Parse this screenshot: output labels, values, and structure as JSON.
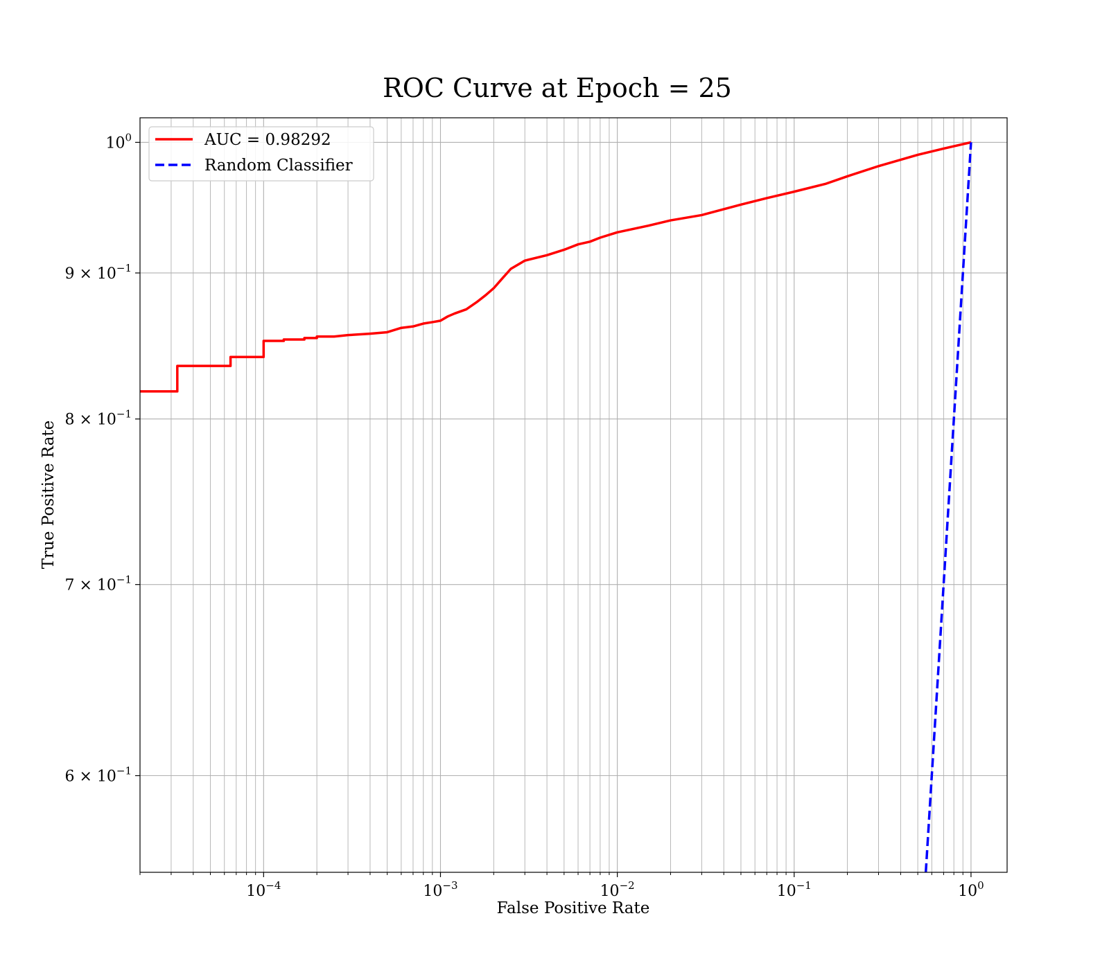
{
  "chart_data": {
    "type": "line",
    "title": "ROC Curve at Epoch = 25",
    "xlabel": "False Positive Rate",
    "ylabel": "True Positive Rate",
    "xscale": "log",
    "yscale": "log",
    "xlim": [
      2e-05,
      1.6
    ],
    "ylim": [
      0.555,
      1.02
    ],
    "grid": true,
    "legend_position": "top-left",
    "x_ticks": [
      {
        "value": 0.0001,
        "base": "10",
        "exp": "−4"
      },
      {
        "value": 0.001,
        "base": "10",
        "exp": "−3"
      },
      {
        "value": 0.01,
        "base": "10",
        "exp": "−2"
      },
      {
        "value": 0.1,
        "base": "10",
        "exp": "−1"
      },
      {
        "value": 1,
        "base": "10",
        "exp": "0"
      }
    ],
    "y_ticks": [
      {
        "value": 0.6,
        "base": "6 × 10",
        "exp": "−1"
      },
      {
        "value": 0.7,
        "base": "7 × 10",
        "exp": "−1"
      },
      {
        "value": 0.8,
        "base": "8 × 10",
        "exp": "−1"
      },
      {
        "value": 0.9,
        "base": "9 × 10",
        "exp": "−1"
      },
      {
        "value": 1.0,
        "base": "10",
        "exp": "0"
      }
    ],
    "series": [
      {
        "name": "AUC = 0.98292",
        "color": "#ff0000",
        "style": "solid",
        "points": [
          [
            2e-05,
            0.818
          ],
          [
            3.25e-05,
            0.818
          ],
          [
            3.25e-05,
            0.835
          ],
          [
            6.5e-05,
            0.835
          ],
          [
            6.5e-05,
            0.841
          ],
          [
            0.0001,
            0.841
          ],
          [
            0.0001,
            0.852
          ],
          [
            0.00013,
            0.852
          ],
          [
            0.00013,
            0.853
          ],
          [
            0.00017,
            0.853
          ],
          [
            0.00017,
            0.854
          ],
          [
            0.0002,
            0.854
          ],
          [
            0.0002,
            0.855
          ],
          [
            0.00025,
            0.855
          ],
          [
            0.0003,
            0.856
          ],
          [
            0.0004,
            0.857
          ],
          [
            0.0005,
            0.858
          ],
          [
            0.0006,
            0.861
          ],
          [
            0.0007,
            0.862
          ],
          [
            0.0008,
            0.864
          ],
          [
            0.0009,
            0.865
          ],
          [
            0.001,
            0.866
          ],
          [
            0.0011,
            0.869
          ],
          [
            0.0012,
            0.871
          ],
          [
            0.0014,
            0.874
          ],
          [
            0.0016,
            0.879
          ],
          [
            0.0018,
            0.884
          ],
          [
            0.002,
            0.889
          ],
          [
            0.0022,
            0.895
          ],
          [
            0.0025,
            0.903
          ],
          [
            0.003,
            0.909
          ],
          [
            0.004,
            0.913
          ],
          [
            0.005,
            0.917
          ],
          [
            0.006,
            0.921
          ],
          [
            0.007,
            0.923
          ],
          [
            0.008,
            0.926
          ],
          [
            0.01,
            0.93
          ],
          [
            0.015,
            0.935
          ],
          [
            0.02,
            0.939
          ],
          [
            0.03,
            0.943
          ],
          [
            0.05,
            0.951
          ],
          [
            0.07,
            0.956
          ],
          [
            0.1,
            0.961
          ],
          [
            0.15,
            0.967
          ],
          [
            0.2,
            0.973
          ],
          [
            0.3,
            0.981
          ],
          [
            0.5,
            0.99
          ],
          [
            0.7,
            0.995
          ],
          [
            1.0,
            1.0
          ]
        ]
      },
      {
        "name": "Random Classifier",
        "color": "#0000ff",
        "style": "dashed",
        "points_note_free": true,
        "x_from": 0.555,
        "x_to": 1.0
      }
    ]
  }
}
